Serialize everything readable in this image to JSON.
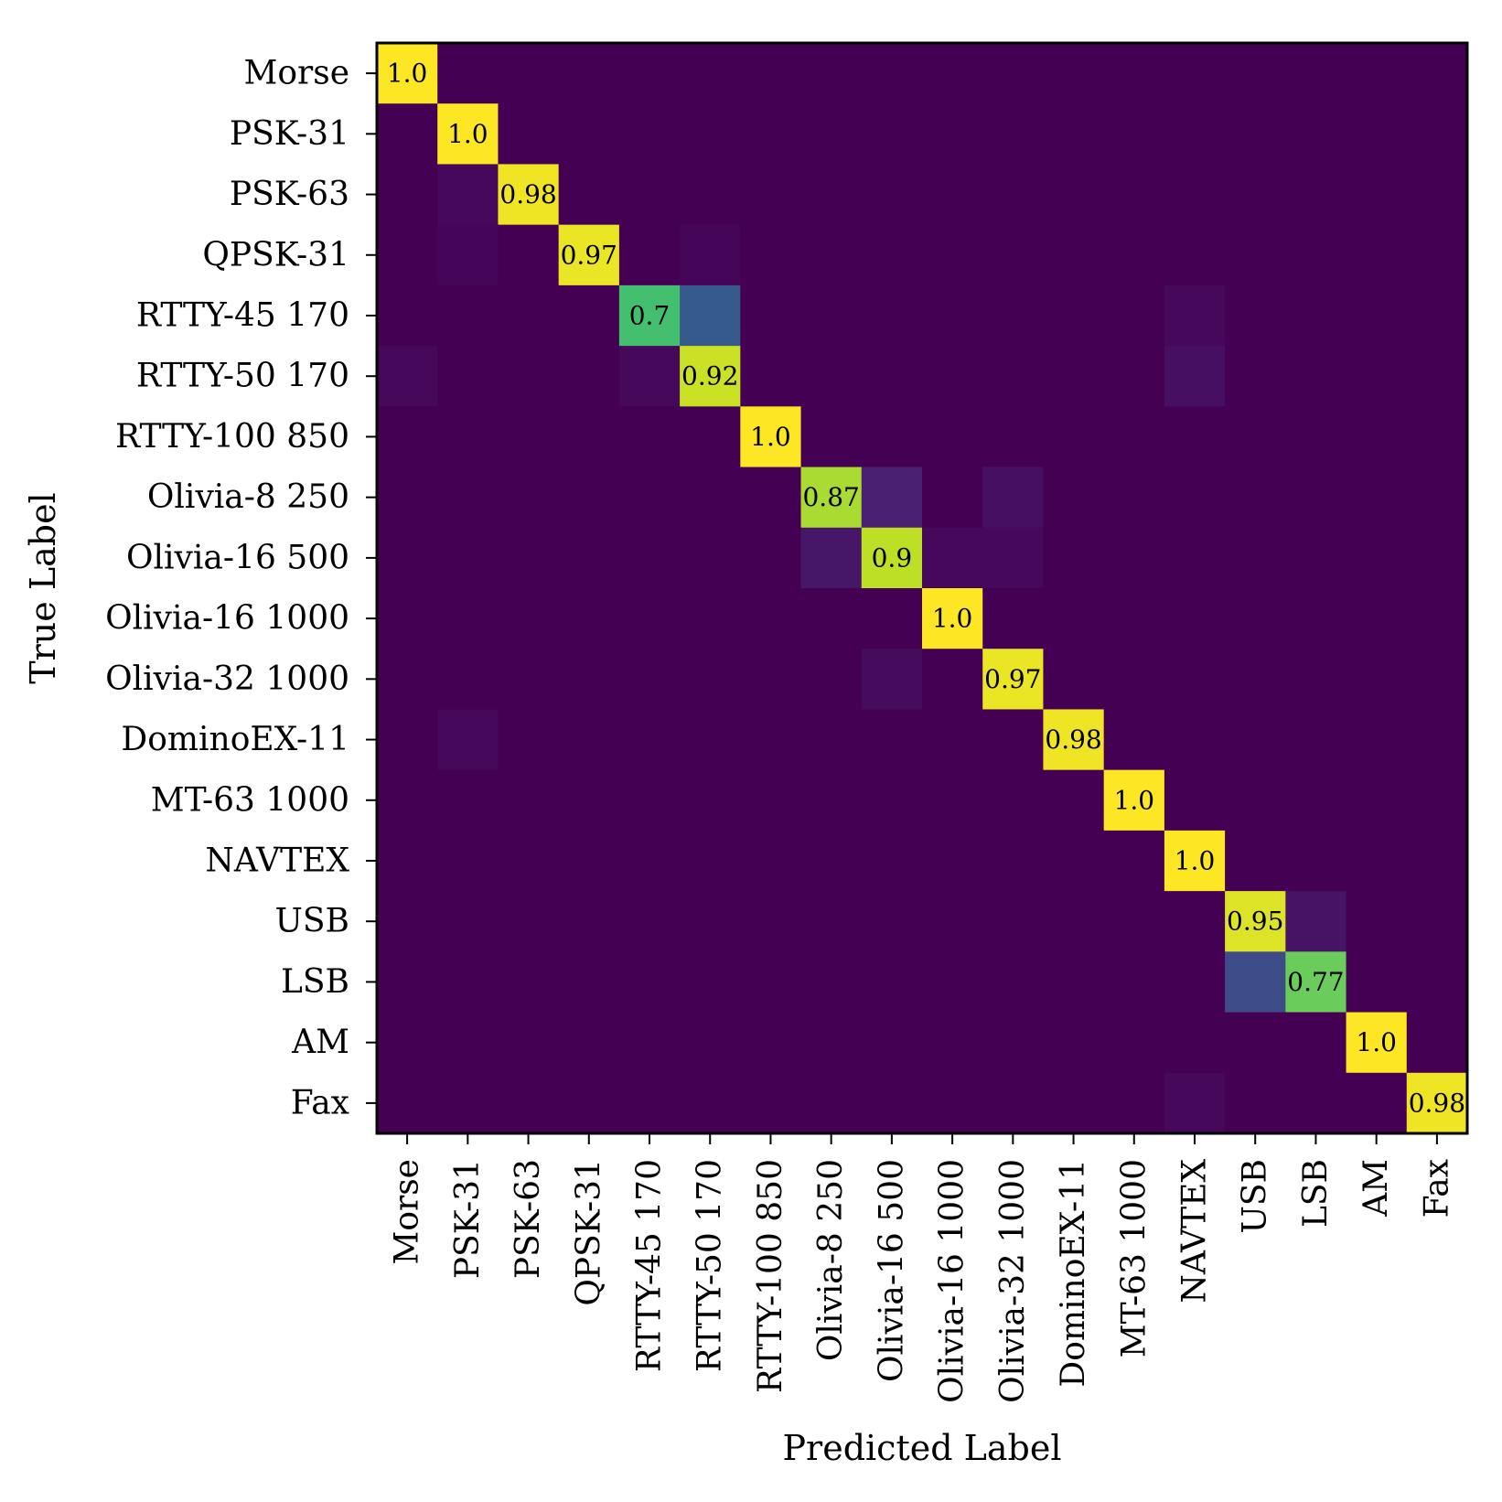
{
  "chart_data": {
    "type": "heatmap",
    "xlabel": "Predicted Label",
    "ylabel": "True Label",
    "labels": [
      "Morse",
      "PSK-31",
      "PSK-63",
      "QPSK-31",
      "RTTY-45 170",
      "RTTY-50 170",
      "RTTY-100 850",
      "Olivia-8 250",
      "Olivia-16 500",
      "Olivia-16 1000",
      "Olivia-32 1000",
      "DominoEX-11",
      "MT-63 1000",
      "NAVTEX",
      "USB",
      "LSB",
      "AM",
      "Fax"
    ],
    "colormap": "viridis",
    "value_range": [
      0,
      1
    ],
    "matrix": [
      [
        1.0,
        0,
        0,
        0,
        0,
        0,
        0,
        0,
        0,
        0,
        0,
        0,
        0,
        0,
        0,
        0,
        0,
        0
      ],
      [
        0,
        1.0,
        0,
        0,
        0,
        0,
        0,
        0,
        0,
        0,
        0,
        0,
        0,
        0,
        0,
        0,
        0,
        0
      ],
      [
        0,
        0.02,
        0.98,
        0,
        0,
        0,
        0,
        0,
        0,
        0,
        0,
        0,
        0,
        0,
        0,
        0,
        0,
        0
      ],
      [
        0,
        0.015,
        0,
        0.97,
        0,
        0.015,
        0,
        0,
        0,
        0,
        0,
        0,
        0,
        0,
        0,
        0,
        0,
        0
      ],
      [
        0,
        0,
        0,
        0,
        0.7,
        0.28,
        0,
        0,
        0,
        0,
        0,
        0,
        0,
        0.02,
        0,
        0,
        0,
        0
      ],
      [
        0.02,
        0,
        0,
        0,
        0.02,
        0.92,
        0,
        0,
        0,
        0,
        0,
        0,
        0,
        0.04,
        0,
        0,
        0,
        0
      ],
      [
        0,
        0,
        0,
        0,
        0,
        0,
        1.0,
        0,
        0,
        0,
        0,
        0,
        0,
        0,
        0,
        0,
        0,
        0
      ],
      [
        0,
        0,
        0,
        0,
        0,
        0,
        0,
        0.87,
        0.09,
        0,
        0.04,
        0,
        0,
        0,
        0,
        0,
        0,
        0
      ],
      [
        0,
        0,
        0,
        0,
        0,
        0,
        0,
        0.06,
        0.9,
        0.02,
        0.02,
        0,
        0,
        0,
        0,
        0,
        0,
        0
      ],
      [
        0,
        0,
        0,
        0,
        0,
        0,
        0,
        0,
        0,
        1.0,
        0,
        0,
        0,
        0,
        0,
        0,
        0,
        0
      ],
      [
        0,
        0,
        0,
        0,
        0,
        0,
        0,
        0,
        0.03,
        0,
        0.97,
        0,
        0,
        0,
        0,
        0,
        0,
        0
      ],
      [
        0,
        0.02,
        0,
        0,
        0,
        0,
        0,
        0,
        0,
        0,
        0,
        0.98,
        0,
        0,
        0,
        0,
        0,
        0
      ],
      [
        0,
        0,
        0,
        0,
        0,
        0,
        0,
        0,
        0,
        0,
        0,
        0,
        1.0,
        0,
        0,
        0,
        0,
        0
      ],
      [
        0,
        0,
        0,
        0,
        0,
        0,
        0,
        0,
        0,
        0,
        0,
        0,
        0,
        1.0,
        0,
        0,
        0,
        0
      ],
      [
        0,
        0,
        0,
        0,
        0,
        0,
        0,
        0,
        0,
        0,
        0,
        0,
        0,
        0,
        0.95,
        0.05,
        0,
        0
      ],
      [
        0,
        0,
        0,
        0,
        0,
        0,
        0,
        0,
        0,
        0,
        0,
        0,
        0,
        0,
        0.23,
        0.77,
        0,
        0
      ],
      [
        0,
        0,
        0,
        0,
        0,
        0,
        0,
        0,
        0,
        0,
        0,
        0,
        0,
        0,
        0,
        0,
        1.0,
        0
      ],
      [
        0,
        0,
        0,
        0,
        0,
        0,
        0,
        0,
        0,
        0,
        0,
        0,
        0,
        0.02,
        0,
        0,
        0,
        0.98
      ]
    ],
    "diagonal_annotations": [
      "1.0",
      "1.0",
      "0.98",
      "0.97",
      "0.7",
      "0.92",
      "1.0",
      "0.87",
      "0.9",
      "1.0",
      "0.97",
      "0.98",
      "1.0",
      "1.0",
      "0.95",
      "0.77",
      "1.0",
      "0.98"
    ]
  }
}
